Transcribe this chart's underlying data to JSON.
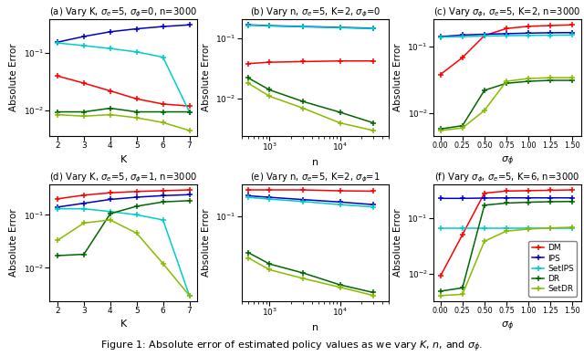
{
  "colors": {
    "DM": "#ff0000",
    "IPS": "#0000cc",
    "SetIPS": "#00cccc",
    "DR": "#006600",
    "SetDR": "#88bb00"
  },
  "subplot_titles": [
    "(a) Vary K, $\\sigma_e$=5, $\\sigma_\\phi$=0, n=3000",
    "(b) Vary n, $\\sigma_e$=5, K=2, $\\sigma_\\phi$=0",
    "(c) Vary $\\sigma_\\phi$, $\\sigma_e$=5, K=2, n=3000",
    "(d) Vary K, $\\sigma_e$=5, $\\sigma_\\phi$=1, n=3000",
    "(e) Vary n, $\\sigma_e$=5, K=2, $\\sigma_\\phi$=1",
    "(f) Vary $\\sigma_\\phi$, $\\sigma_e$=5, K=6, n=3000"
  ],
  "panel_a": {
    "x": [
      2,
      3,
      4,
      5,
      6,
      7
    ],
    "DM": [
      0.04,
      0.03,
      0.022,
      0.016,
      0.013,
      0.012
    ],
    "IPS": [
      0.155,
      0.195,
      0.235,
      0.265,
      0.29,
      0.31
    ],
    "SetIPS": [
      0.15,
      0.135,
      0.12,
      0.105,
      0.085,
      0.0095
    ],
    "DR": [
      0.0095,
      0.0095,
      0.011,
      0.0095,
      0.0095,
      0.0095
    ],
    "SetDR": [
      0.0085,
      0.008,
      0.0085,
      0.0075,
      0.0062,
      0.0045
    ]
  },
  "panel_b": {
    "x": [
      500,
      1000,
      3000,
      10000,
      30000
    ],
    "DM": [
      0.038,
      0.04,
      0.041,
      0.042,
      0.042
    ],
    "IPS": [
      0.165,
      0.16,
      0.155,
      0.15,
      0.145
    ],
    "SetIPS": [
      0.163,
      0.158,
      0.153,
      0.148,
      0.143
    ],
    "DR": [
      0.022,
      0.014,
      0.009,
      0.006,
      0.004
    ],
    "SetDR": [
      0.018,
      0.011,
      0.007,
      0.004,
      0.003
    ]
  },
  "panel_c": {
    "x": [
      0.0,
      0.25,
      0.5,
      0.75,
      1.0,
      1.25,
      1.5
    ],
    "DM": [
      0.038,
      0.068,
      0.145,
      0.185,
      0.2,
      0.205,
      0.21
    ],
    "IPS": [
      0.14,
      0.148,
      0.152,
      0.155,
      0.158,
      0.16,
      0.161
    ],
    "SetIPS": [
      0.138,
      0.14,
      0.143,
      0.145,
      0.146,
      0.147,
      0.148
    ],
    "DR": [
      0.0058,
      0.0065,
      0.022,
      0.028,
      0.03,
      0.031,
      0.031
    ],
    "SetDR": [
      0.0055,
      0.006,
      0.011,
      0.03,
      0.033,
      0.034,
      0.034
    ]
  },
  "panel_d": {
    "x": [
      2,
      3,
      4,
      5,
      6,
      7
    ],
    "DM": [
      0.2,
      0.235,
      0.26,
      0.275,
      0.285,
      0.295
    ],
    "IPS": [
      0.14,
      0.165,
      0.195,
      0.215,
      0.23,
      0.24
    ],
    "SetIPS": [
      0.13,
      0.13,
      0.115,
      0.1,
      0.08,
      0.003
    ],
    "DR": [
      0.017,
      0.018,
      0.105,
      0.145,
      0.175,
      0.185
    ],
    "SetDR": [
      0.033,
      0.07,
      0.08,
      0.045,
      0.012,
      0.003
    ]
  },
  "panel_e": {
    "x": [
      500,
      1000,
      3000,
      10000,
      30000
    ],
    "DM": [
      0.205,
      0.205,
      0.205,
      0.2,
      0.198
    ],
    "IPS": [
      0.175,
      0.168,
      0.158,
      0.148,
      0.138
    ],
    "SetIPS": [
      0.168,
      0.16,
      0.15,
      0.138,
      0.13
    ],
    "DR": [
      0.038,
      0.028,
      0.022,
      0.016,
      0.013
    ],
    "SetDR": [
      0.033,
      0.024,
      0.019,
      0.015,
      0.012
    ]
  },
  "panel_f": {
    "x": [
      0.0,
      0.25,
      0.5,
      0.75,
      1.0,
      1.25,
      1.5
    ],
    "DM": [
      0.009,
      0.05,
      0.28,
      0.305,
      0.31,
      0.315,
      0.32
    ],
    "IPS": [
      0.225,
      0.225,
      0.228,
      0.23,
      0.23,
      0.23,
      0.23
    ],
    "SetIPS": [
      0.065,
      0.065,
      0.065,
      0.065,
      0.065,
      0.065,
      0.065
    ],
    "DR": [
      0.0048,
      0.0055,
      0.17,
      0.185,
      0.192,
      0.196,
      0.198
    ],
    "SetDR": [
      0.004,
      0.0042,
      0.038,
      0.058,
      0.063,
      0.066,
      0.068
    ]
  },
  "figure_caption": "Figure 1: Absolute error of estimated policy values as we vary $K$, $n$, and $\\sigma_\\phi$.",
  "ylabel": "Absolute Error",
  "xlabel_K": "K",
  "xlabel_n": "n",
  "xlabel_sigma": "$\\sigma_\\phi$",
  "legend_methods": [
    "DM",
    "IPS",
    "SetIPS",
    "DR",
    "SetDR"
  ]
}
